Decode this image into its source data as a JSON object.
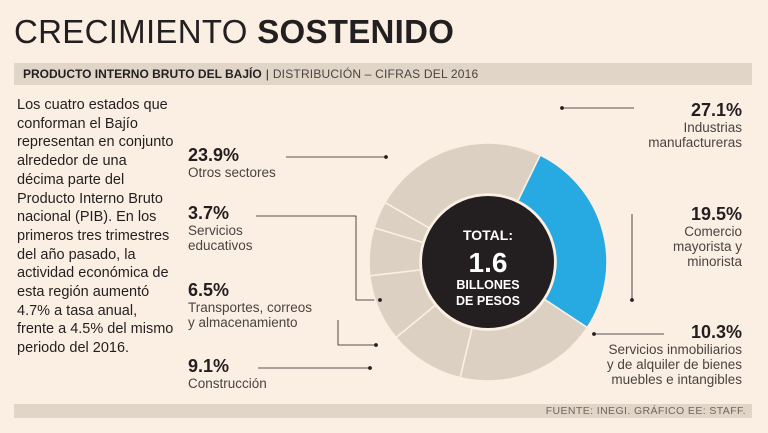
{
  "header": {
    "title_light": "CRECIMIENTO ",
    "title_bold": "SOSTENIDO",
    "subtitle_bold": "PRODUCTO INTERNO BRUTO DEL BAJÍO",
    "subtitle_sep": "|",
    "subtitle_light": "DISTRIBUCIÓN – CIFRAS DEL 2016"
  },
  "intro_text": "Los cuatro estados que conforman el Bajío representan en conjunto alrededor de una décima parte del Producto Interno Bruto nacional (PIB). En los primeros tres trimestres del año pasado, la actividad económica de esta región aumentó 4.7% a tasa anual, frente a 4.5% del mismo periodo del 2016.",
  "chart_data": {
    "type": "pie",
    "title": "Producto Interno Bruto del Bajío — Distribución, cifras del 2016",
    "center": {
      "line1": "TOTAL:",
      "line2": "1.6",
      "line3": "BILLONES",
      "line4": "DE PESOS"
    },
    "slices": [
      {
        "pct_label": "27.1%",
        "value": 27.1,
        "label_lines": [
          "Industrias",
          "manufactureras"
        ],
        "highlight": true
      },
      {
        "pct_label": "19.5%",
        "value": 19.5,
        "label_lines": [
          "Comercio",
          "mayorista y",
          "minorista"
        ],
        "highlight": false
      },
      {
        "pct_label": "10.3%",
        "value": 10.3,
        "label_lines": [
          "Servicios inmobiliarios",
          "y de alquiler de bienes",
          "muebles e intangibles"
        ],
        "highlight": false
      },
      {
        "pct_label": "9.1%",
        "value": 9.1,
        "label_lines": [
          "Construcción"
        ],
        "highlight": false
      },
      {
        "pct_label": "6.5%",
        "value": 6.5,
        "label_lines": [
          "Transportes, correos",
          "y almacenamiento"
        ],
        "highlight": false
      },
      {
        "pct_label": "3.7%",
        "value": 3.7,
        "label_lines": [
          "Servicios",
          "educativos"
        ],
        "highlight": false
      },
      {
        "pct_label": "23.9%",
        "value": 23.9,
        "label_lines": [
          "Otros sectores"
        ],
        "highlight": false
      }
    ]
  },
  "colors": {
    "highlight": "#27a9e1",
    "slice": "#dcd0c3",
    "center": "#231f20",
    "leader": "#231f20",
    "background": "#fbefe3"
  },
  "footer_text": "FUENTE: INEGI. GRÁFICO EE: STAFF."
}
